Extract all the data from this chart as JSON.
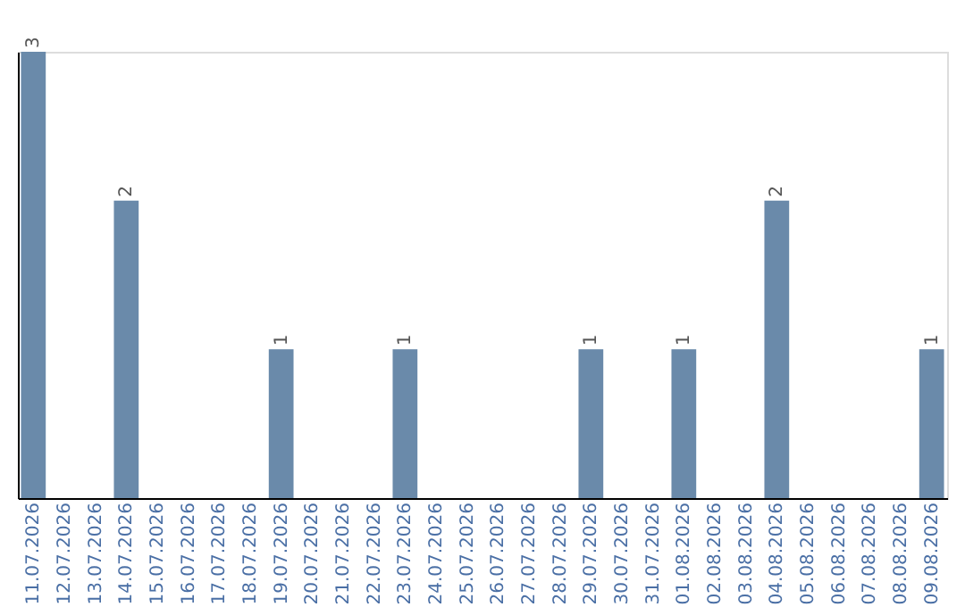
{
  "chart_data": {
    "type": "bar",
    "categories": [
      "11.07.2026",
      "12.07.2026",
      "13.07.2026",
      "14.07.2026",
      "15.07.2026",
      "16.07.2026",
      "17.07.2026",
      "18.07.2026",
      "19.07.2026",
      "20.07.2026",
      "21.07.2026",
      "22.07.2026",
      "23.07.2026",
      "24.07.2026",
      "25.07.2026",
      "26.07.2026",
      "27.07.2026",
      "28.07.2026",
      "29.07.2026",
      "30.07.2026",
      "31.07.2026",
      "01.08.2026",
      "02.08.2026",
      "03.08.2026",
      "04.08.2026",
      "05.08.2026",
      "06.08.2026",
      "07.08.2026",
      "08.08.2026",
      "09.08.2026"
    ],
    "values": [
      3,
      0,
      0,
      2,
      0,
      0,
      0,
      0,
      1,
      0,
      0,
      0,
      1,
      0,
      0,
      0,
      0,
      0,
      1,
      0,
      0,
      1,
      0,
      0,
      2,
      0,
      0,
      0,
      0,
      1
    ],
    "value_labels": [
      "3",
      null,
      null,
      "2",
      null,
      null,
      null,
      null,
      "1",
      null,
      null,
      null,
      "1",
      null,
      null,
      null,
      null,
      null,
      "1",
      null,
      null,
      "1",
      null,
      null,
      "2",
      null,
      null,
      null,
      null,
      "1"
    ],
    "color": "#6a8aaa",
    "grid": false,
    "tick_labels": "x"
  }
}
